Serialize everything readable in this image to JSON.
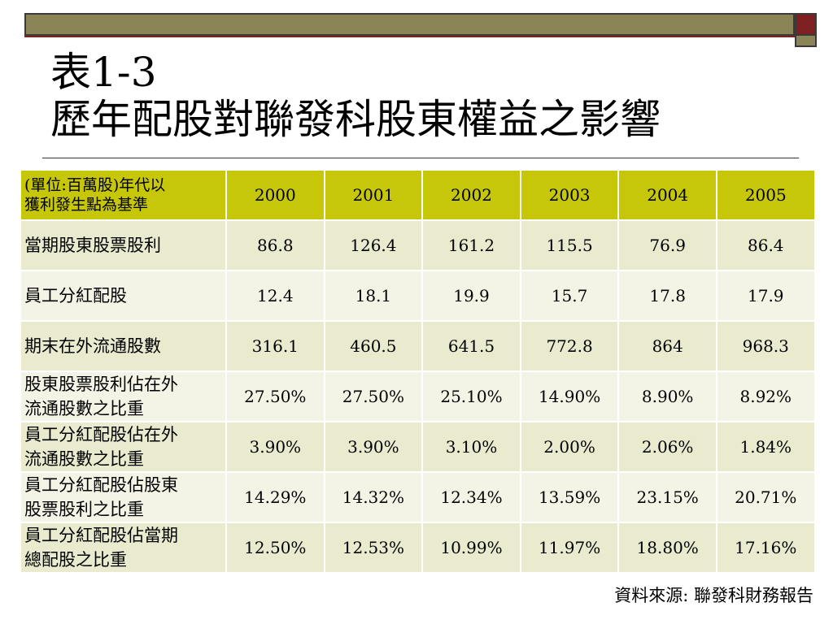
{
  "slide": {
    "title_line1": "表1-3",
    "title_line2": "歷年配股對聯發科股東權益之影響",
    "source": "資料來源: 聯發科財務報告",
    "colors": {
      "header_bg": "#c7c70a",
      "row_odd_bg": "#eaeacf",
      "row_even_bg": "#f4f4e6",
      "bar_olive": "#8a8456",
      "bar_red": "#7e1f22"
    }
  },
  "table": {
    "head_label_line1": "(單位:百萬股)年代以",
    "head_label_line2": "獲利發生點為基準",
    "years": [
      "2000",
      "2001",
      "2002",
      "2003",
      "2004",
      "2005"
    ],
    "rows": [
      {
        "label_line1": "當期股東股票股利",
        "label_line2": "",
        "values": [
          "86.8",
          "126.4",
          "161.2",
          "115.5",
          "76.9",
          "86.4"
        ]
      },
      {
        "label_line1": "員工分紅配股",
        "label_line2": "",
        "values": [
          "12.4",
          "18.1",
          "19.9",
          "15.7",
          "17.8",
          "17.9"
        ]
      },
      {
        "label_line1": "期末在外流通股數",
        "label_line2": "",
        "values": [
          "316.1",
          "460.5",
          "641.5",
          "772.8",
          "864",
          "968.3"
        ]
      },
      {
        "label_line1": "股東股票股利佔在外",
        "label_line2": "流通股數之比重",
        "values": [
          "27.50%",
          "27.50%",
          "25.10%",
          "14.90%",
          "8.90%",
          "8.92%"
        ]
      },
      {
        "label_line1": "員工分紅配股佔在外",
        "label_line2": "流通股數之比重",
        "values": [
          "3.90%",
          "3.90%",
          "3.10%",
          "2.00%",
          "2.06%",
          "1.84%"
        ]
      },
      {
        "label_line1": "員工分紅配股佔股東",
        "label_line2": "股票股利之比重",
        "values": [
          "14.29%",
          "14.32%",
          "12.34%",
          "13.59%",
          "23.15%",
          "20.71%"
        ]
      },
      {
        "label_line1": "員工分紅配股佔當期",
        "label_line2": "總配股之比重",
        "values": [
          "12.50%",
          "12.53%",
          "10.99%",
          "11.97%",
          "18.80%",
          "17.16%"
        ]
      }
    ]
  }
}
